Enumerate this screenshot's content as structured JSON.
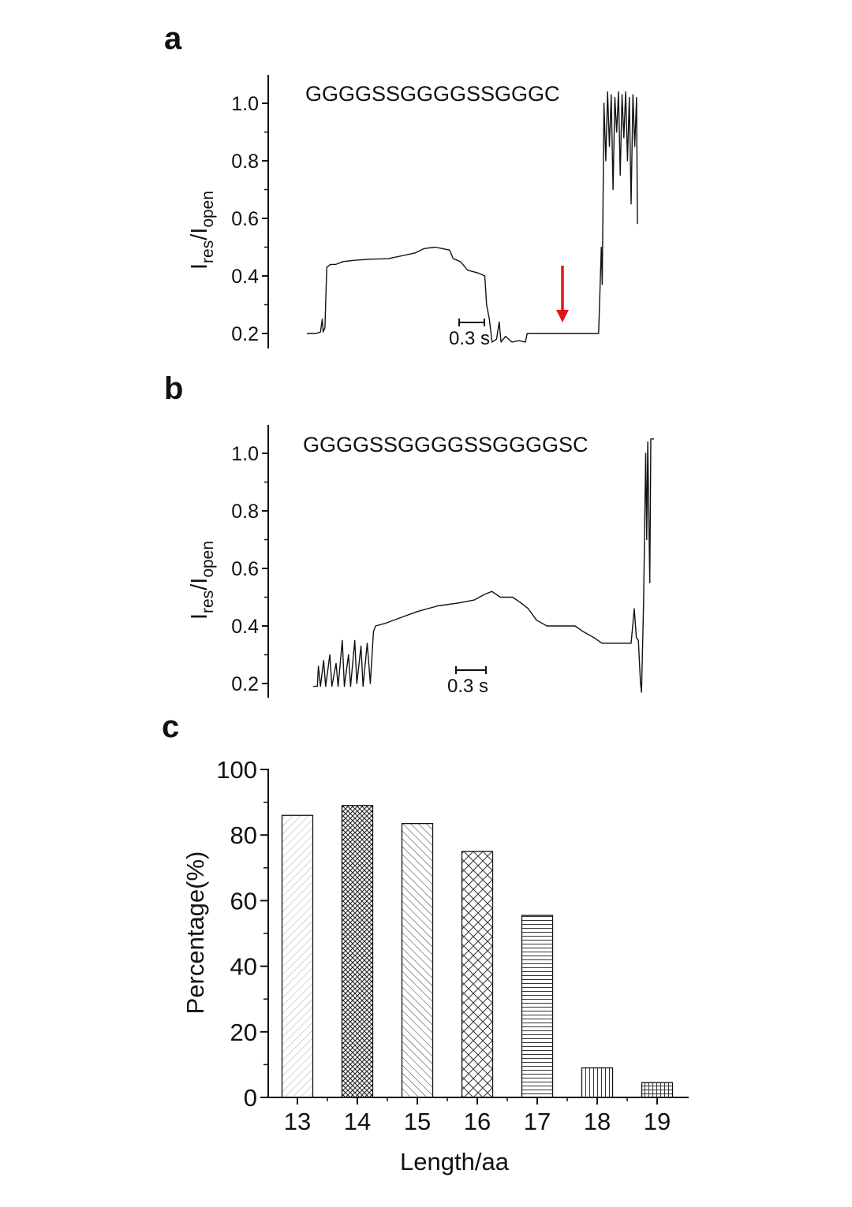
{
  "chart_data": [
    {
      "panel": "a",
      "type": "line",
      "annotation": "GGGGSSGGGGSSGGGC",
      "ylabel_main": "I",
      "ylabel_sub1": "res",
      "ylabel_sep": "/I",
      "ylabel_sub2": "open",
      "ylim": [
        0.17,
        1.1
      ],
      "yticks": [
        "0.2",
        "0.4",
        "0.6",
        "0.8",
        "1.0"
      ],
      "scale_bar_label": "0.3 s",
      "arrow_color": "#e0141b",
      "trace_color": "#111111",
      "trace": [
        [
          0.0,
          0.2
        ],
        [
          0.1,
          0.2
        ],
        [
          0.15,
          0.205
        ],
        [
          0.17,
          0.25
        ],
        [
          0.18,
          0.205
        ],
        [
          0.2,
          0.22
        ],
        [
          0.22,
          0.43
        ],
        [
          0.26,
          0.44
        ],
        [
          0.32,
          0.44
        ],
        [
          0.4,
          0.45
        ],
        [
          0.55,
          0.455
        ],
        [
          0.7,
          0.458
        ],
        [
          0.9,
          0.46
        ],
        [
          1.05,
          0.47
        ],
        [
          1.2,
          0.48
        ],
        [
          1.3,
          0.495
        ],
        [
          1.42,
          0.5
        ],
        [
          1.5,
          0.495
        ],
        [
          1.58,
          0.49
        ],
        [
          1.62,
          0.46
        ],
        [
          1.7,
          0.45
        ],
        [
          1.78,
          0.42
        ],
        [
          1.9,
          0.41
        ],
        [
          1.97,
          0.4
        ],
        [
          1.99,
          0.3
        ],
        [
          2.02,
          0.25
        ],
        [
          2.05,
          0.17
        ],
        [
          2.1,
          0.18
        ],
        [
          2.13,
          0.24
        ],
        [
          2.15,
          0.17
        ],
        [
          2.2,
          0.19
        ],
        [
          2.27,
          0.17
        ],
        [
          2.35,
          0.175
        ],
        [
          2.42,
          0.17
        ],
        [
          2.44,
          0.2
        ],
        [
          2.6,
          0.2
        ],
        [
          2.8,
          0.2
        ],
        [
          3.0,
          0.2
        ],
        [
          3.15,
          0.2
        ],
        [
          3.23,
          0.2
        ],
        [
          3.25,
          0.4
        ],
        [
          3.26,
          0.5
        ],
        [
          3.27,
          0.37
        ],
        [
          3.29,
          1.0
        ],
        [
          3.31,
          0.8
        ],
        [
          3.33,
          1.04
        ],
        [
          3.35,
          0.85
        ],
        [
          3.37,
          1.03
        ],
        [
          3.39,
          0.7
        ],
        [
          3.41,
          1.02
        ],
        [
          3.43,
          0.9
        ],
        [
          3.45,
          1.04
        ],
        [
          3.47,
          0.75
        ],
        [
          3.49,
          1.03
        ],
        [
          3.51,
          0.88
        ],
        [
          3.53,
          1.04
        ],
        [
          3.55,
          0.8
        ],
        [
          3.57,
          1.02
        ],
        [
          3.59,
          0.65
        ],
        [
          3.61,
          1.03
        ],
        [
          3.63,
          0.85
        ],
        [
          3.65,
          1.02
        ],
        [
          3.66,
          0.58
        ]
      ]
    },
    {
      "panel": "b",
      "type": "line",
      "annotation": "GGGGSSGGGGSSGGGGSC",
      "ylabel_main": "I",
      "ylabel_sub1": "res",
      "ylabel_sep": "/I",
      "ylabel_sub2": "open",
      "ylim": [
        0.17,
        1.1
      ],
      "yticks": [
        "0.2",
        "0.4",
        "0.6",
        "0.8",
        "1.0"
      ],
      "scale_bar_label": "0.3 s",
      "trace_color": "#111111",
      "trace": [
        [
          0.0,
          0.19
        ],
        [
          0.04,
          0.19
        ],
        [
          0.05,
          0.26
        ],
        [
          0.07,
          0.19
        ],
        [
          0.1,
          0.28
        ],
        [
          0.12,
          0.19
        ],
        [
          0.16,
          0.3
        ],
        [
          0.18,
          0.19
        ],
        [
          0.22,
          0.27
        ],
        [
          0.24,
          0.19
        ],
        [
          0.28,
          0.35
        ],
        [
          0.3,
          0.19
        ],
        [
          0.34,
          0.3
        ],
        [
          0.36,
          0.19
        ],
        [
          0.4,
          0.35
        ],
        [
          0.42,
          0.2
        ],
        [
          0.46,
          0.33
        ],
        [
          0.48,
          0.19
        ],
        [
          0.52,
          0.34
        ],
        [
          0.55,
          0.2
        ],
        [
          0.58,
          0.38
        ],
        [
          0.6,
          0.4
        ],
        [
          0.7,
          0.41
        ],
        [
          0.85,
          0.43
        ],
        [
          1.0,
          0.45
        ],
        [
          1.2,
          0.47
        ],
        [
          1.4,
          0.48
        ],
        [
          1.55,
          0.49
        ],
        [
          1.65,
          0.51
        ],
        [
          1.72,
          0.52
        ],
        [
          1.8,
          0.5
        ],
        [
          1.92,
          0.5
        ],
        [
          2.0,
          0.48
        ],
        [
          2.07,
          0.46
        ],
        [
          2.15,
          0.42
        ],
        [
          2.25,
          0.4
        ],
        [
          2.4,
          0.4
        ],
        [
          2.52,
          0.4
        ],
        [
          2.6,
          0.38
        ],
        [
          2.7,
          0.36
        ],
        [
          2.78,
          0.34
        ],
        [
          2.85,
          0.34
        ],
        [
          3.0,
          0.34
        ],
        [
          3.06,
          0.34
        ],
        [
          3.09,
          0.46
        ],
        [
          3.11,
          0.36
        ],
        [
          3.13,
          0.35
        ],
        [
          3.15,
          0.2
        ],
        [
          3.16,
          0.17
        ],
        [
          3.18,
          0.48
        ],
        [
          3.2,
          1.0
        ],
        [
          3.21,
          0.7
        ],
        [
          3.22,
          1.04
        ],
        [
          3.24,
          0.55
        ],
        [
          3.25,
          1.05
        ],
        [
          3.28,
          1.05
        ]
      ]
    },
    {
      "panel": "c",
      "type": "bar",
      "categories": [
        "13",
        "14",
        "15",
        "16",
        "17",
        "18",
        "19"
      ],
      "values": [
        86,
        89,
        83.5,
        75,
        55.5,
        9,
        4.5
      ],
      "patterns": [
        "diag-light",
        "crosshatch-dense",
        "diag-back",
        "crosshatch-x",
        "horizontal",
        "vertical",
        "grid"
      ],
      "xlabel": "Length/aa",
      "ylabel": "Percentage(%)",
      "ylim": [
        0,
        100
      ],
      "yticks": [
        "0",
        "20",
        "40",
        "60",
        "80",
        "100"
      ]
    }
  ],
  "labels": {
    "panel_a": "a",
    "panel_b": "b",
    "panel_c": "c"
  }
}
